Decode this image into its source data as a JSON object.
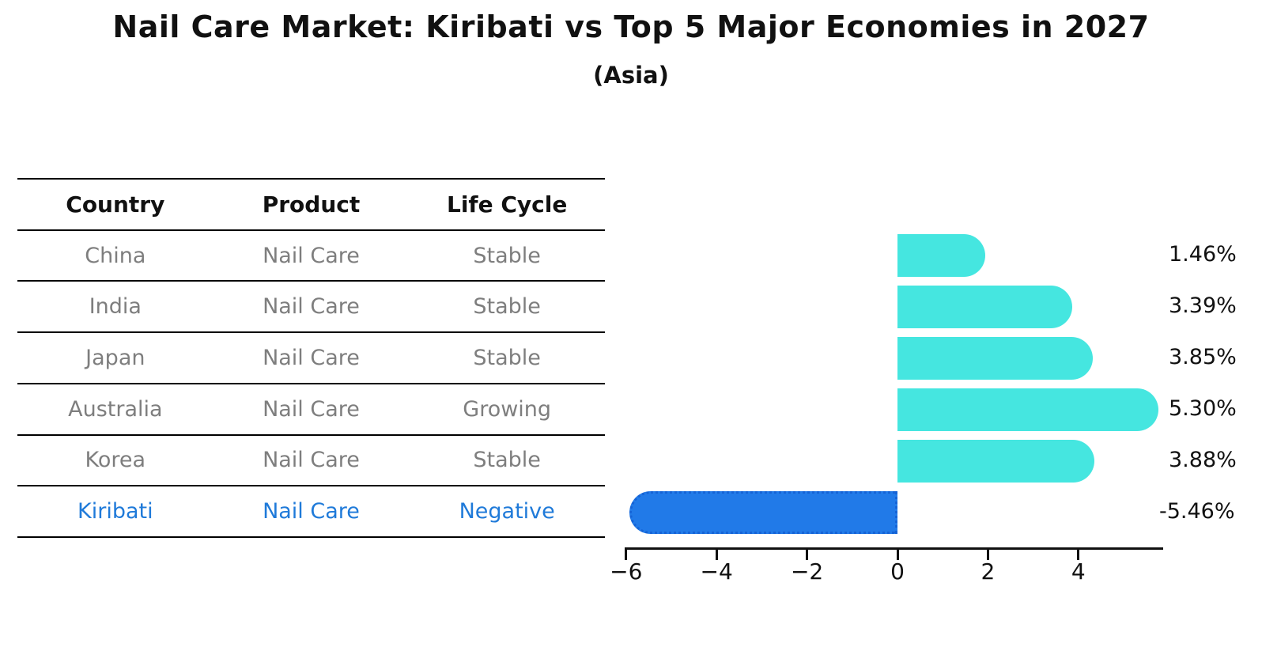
{
  "header": {
    "title": "Nail Care Market: Kiribati vs Top 5 Major Economies in 2027",
    "subtitle": "(Asia)"
  },
  "table": {
    "columns": [
      "Country",
      "Product",
      "Life Cycle"
    ],
    "rows": [
      {
        "country": "China",
        "product": "Nail Care",
        "life_cycle": "Stable",
        "highlight": false
      },
      {
        "country": "India",
        "product": "Nail Care",
        "life_cycle": "Stable",
        "highlight": false
      },
      {
        "country": "Japan",
        "product": "Nail Care",
        "life_cycle": "Stable",
        "highlight": false
      },
      {
        "country": "Australia",
        "product": "Nail Care",
        "life_cycle": "Growing",
        "highlight": false
      },
      {
        "country": "Korea",
        "product": "Nail Care",
        "life_cycle": "Stable",
        "highlight": false
      },
      {
        "country": "Kiribati",
        "product": "Nail Care",
        "life_cycle": "Negative",
        "highlight": true
      }
    ]
  },
  "chart_data": {
    "type": "bar",
    "orientation": "horizontal",
    "title": "Nail Care Market: Kiribati vs Top 5 Major Economies in 2027",
    "subtitle": "(Asia)",
    "categories": [
      "China",
      "India",
      "Japan",
      "Australia",
      "Korea",
      "Kiribati"
    ],
    "values": [
      1.46,
      3.39,
      3.85,
      5.3,
      3.88,
      -5.46
    ],
    "value_labels": [
      "1.46%",
      "3.39%",
      "3.85%",
      "5.30%",
      "3.88%",
      "-5.46%"
    ],
    "x_ticks": [
      -6,
      -4,
      -2,
      0,
      2,
      4
    ],
    "x_tick_labels": [
      "−6",
      "−4",
      "−2",
      "0",
      "2",
      "4"
    ],
    "xlim": [
      -6.05,
      5.9
    ],
    "grid": false,
    "legend": "none",
    "xlabel": "",
    "ylabel": ""
  },
  "colors": {
    "positive_bar": "#45e6e0",
    "negative_bar_fill": "#217ae8",
    "negative_bar_edge": "#1563d6",
    "highlight_text": "#1f7ad9",
    "table_text": "#7e7e7e",
    "axis": "#111111"
  }
}
